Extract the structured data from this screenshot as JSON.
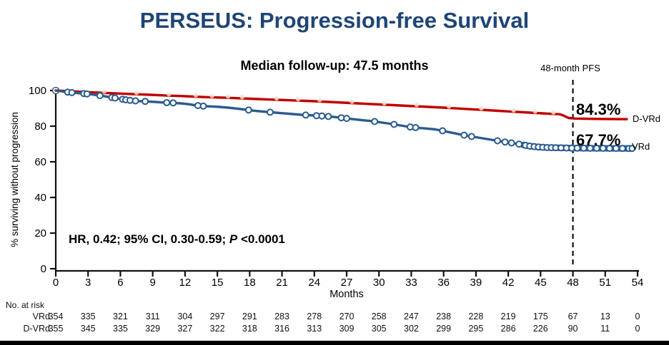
{
  "page": {
    "title": "PERSEUS: Progression-free Survival",
    "subtitle": "Median follow-up: 47.5 months"
  },
  "colors": {
    "title_navy": "#1F4575",
    "dvrd_red": "#C00000",
    "vrd_blue": "#2B5C8F",
    "censor_cream": "#EDE5D3",
    "axis_black": "#111111"
  },
  "chart_data": {
    "type": "line",
    "variant": "kaplan-meier-survival",
    "xlabel": "Months",
    "ylabel": "% surviving without progression",
    "xlim": [
      0,
      54
    ],
    "ylim": [
      0,
      100
    ],
    "x_ticks": [
      0,
      3,
      6,
      9,
      12,
      15,
      18,
      21,
      24,
      27,
      30,
      33,
      36,
      39,
      42,
      45,
      48,
      51,
      54
    ],
    "y_ticks": [
      0,
      20,
      40,
      60,
      80,
      100
    ],
    "grid": false,
    "legend_position": "right-of-curve-ends",
    "reference_line": {
      "month": 48,
      "label": "48-month PFS"
    },
    "annotation": {
      "hr_text": "HR, 0.42; 95% CI, 0.30-0.59; ",
      "p_label": "P",
      "p_value": " <0.0001"
    },
    "series": [
      {
        "name": "D-VRd",
        "color": "#C00000",
        "pfs_at_48": "84.3%",
        "censor_style": "faint-cream-tick",
        "points": [
          [
            0,
            100
          ],
          [
            1,
            99.7
          ],
          [
            2,
            99.4
          ],
          [
            3,
            99.1
          ],
          [
            4,
            98.8
          ],
          [
            6,
            98.3
          ],
          [
            8,
            97.8
          ],
          [
            10,
            97.3
          ],
          [
            12,
            96.8
          ],
          [
            14,
            96.3
          ],
          [
            16,
            95.9
          ],
          [
            18,
            95.4
          ],
          [
            20,
            94.9
          ],
          [
            22,
            94.5
          ],
          [
            24,
            94.0
          ],
          [
            26,
            93.4
          ],
          [
            28,
            92.8
          ],
          [
            30,
            92.2
          ],
          [
            32,
            91.6
          ],
          [
            34,
            91.0
          ],
          [
            36,
            90.4
          ],
          [
            38,
            89.7
          ],
          [
            40,
            89.0
          ],
          [
            42,
            88.3
          ],
          [
            44,
            87.6
          ],
          [
            45.5,
            87.1
          ],
          [
            46.8,
            86.7
          ],
          [
            47.1,
            86.0
          ],
          [
            47.6,
            84.6
          ],
          [
            48.2,
            84.3
          ],
          [
            50,
            84.1
          ],
          [
            53,
            83.9
          ]
        ],
        "censor_months": [
          4.5,
          7.5,
          10.5,
          13,
          14.5,
          16,
          17.3,
          20.5,
          22.5,
          24.5,
          27.5,
          30.5,
          33.5,
          36.5,
          39.5,
          42.5,
          44.5,
          46.2
        ]
      },
      {
        "name": "VRd",
        "color": "#2B5C8F",
        "pfs_at_48": "67.7%",
        "censor_style": "open-circle",
        "thick_tail_from": 43.4,
        "points": [
          [
            0,
            100
          ],
          [
            0.5,
            99.6
          ],
          [
            0.9,
            99.2
          ],
          [
            1.4,
            98.9
          ],
          [
            2,
            98.6
          ],
          [
            2.6,
            98.3
          ],
          [
            3.2,
            97.9
          ],
          [
            3.8,
            97.4
          ],
          [
            4.4,
            96.9
          ],
          [
            5,
            96.3
          ],
          [
            5.5,
            95.8
          ],
          [
            6,
            95.3
          ],
          [
            6.5,
            94.8
          ],
          [
            7,
            94.4
          ],
          [
            7.6,
            94.1
          ],
          [
            8.4,
            93.9
          ],
          [
            9.2,
            93.6
          ],
          [
            10,
            93.3
          ],
          [
            10.8,
            93.1
          ],
          [
            11.6,
            92.8
          ],
          [
            12.4,
            92.3
          ],
          [
            13,
            91.7
          ],
          [
            13.6,
            91.3
          ],
          [
            14.4,
            91.1
          ],
          [
            15.2,
            90.8
          ],
          [
            16,
            90.4
          ],
          [
            16.8,
            89.9
          ],
          [
            17.6,
            89.3
          ],
          [
            18.4,
            88.7
          ],
          [
            19.2,
            88.2
          ],
          [
            20,
            87.8
          ],
          [
            21,
            87.3
          ],
          [
            22,
            86.8
          ],
          [
            23,
            86.3
          ],
          [
            24,
            86.0
          ],
          [
            25,
            85.6
          ],
          [
            26,
            85.1
          ],
          [
            26.8,
            84.5
          ],
          [
            27.6,
            83.9
          ],
          [
            28.4,
            83.4
          ],
          [
            29.2,
            82.9
          ],
          [
            30,
            82.3
          ],
          [
            31,
            81.4
          ],
          [
            32,
            80.4
          ],
          [
            32.8,
            79.6
          ],
          [
            33.6,
            79.1
          ],
          [
            34.4,
            78.7
          ],
          [
            35.2,
            78.2
          ],
          [
            36,
            77.3
          ],
          [
            36.8,
            76.3
          ],
          [
            37.6,
            75.3
          ],
          [
            38.4,
            74.4
          ],
          [
            39.2,
            73.6
          ],
          [
            40,
            72.8
          ],
          [
            40.8,
            72.0
          ],
          [
            41.6,
            71.2
          ],
          [
            42.4,
            70.5
          ],
          [
            43.2,
            69.7
          ],
          [
            44,
            68.8
          ],
          [
            44.8,
            68.3
          ],
          [
            45.6,
            68.0
          ],
          [
            46.4,
            67.9
          ],
          [
            47.2,
            67.8
          ],
          [
            48,
            67.7
          ],
          [
            50,
            67.6
          ],
          [
            53.5,
            67.5
          ]
        ],
        "censor_months": [
          1.1,
          1.5,
          2.6,
          2.9,
          4.1,
          5.2,
          5.5,
          6.2,
          6.5,
          6.9,
          7.4,
          8.3,
          10.3,
          10.9,
          13.2,
          13.7,
          17.9,
          19.9,
          23.2,
          24.2,
          24.7,
          25.3,
          26.5,
          27.0,
          29.6,
          31.4,
          32.9,
          33.4,
          35.9,
          37.9,
          38.6,
          41.0,
          41.7,
          42.3,
          43.0,
          43.6,
          44.0,
          44.4,
          44.8,
          45.2,
          45.6,
          46.0,
          46.4,
          46.9,
          47.4,
          47.9,
          48.4,
          49.0,
          49.6,
          50.2,
          50.8,
          51.4,
          52.0,
          52.6,
          53.2,
          53.5
        ]
      }
    ],
    "risk_table": {
      "title": "No. at risk",
      "months": [
        0,
        3,
        6,
        9,
        12,
        15,
        18,
        21,
        24,
        27,
        30,
        33,
        36,
        39,
        42,
        45,
        48,
        51,
        54
      ],
      "rows": [
        {
          "label": "VRd",
          "values": [
            354,
            335,
            321,
            311,
            304,
            297,
            291,
            283,
            278,
            270,
            258,
            247,
            238,
            228,
            219,
            175,
            67,
            13,
            0
          ]
        },
        {
          "label": "D-VRd",
          "values": [
            355,
            345,
            335,
            329,
            327,
            322,
            318,
            316,
            313,
            309,
            305,
            302,
            299,
            295,
            286,
            226,
            90,
            11,
            0
          ]
        }
      ]
    }
  }
}
